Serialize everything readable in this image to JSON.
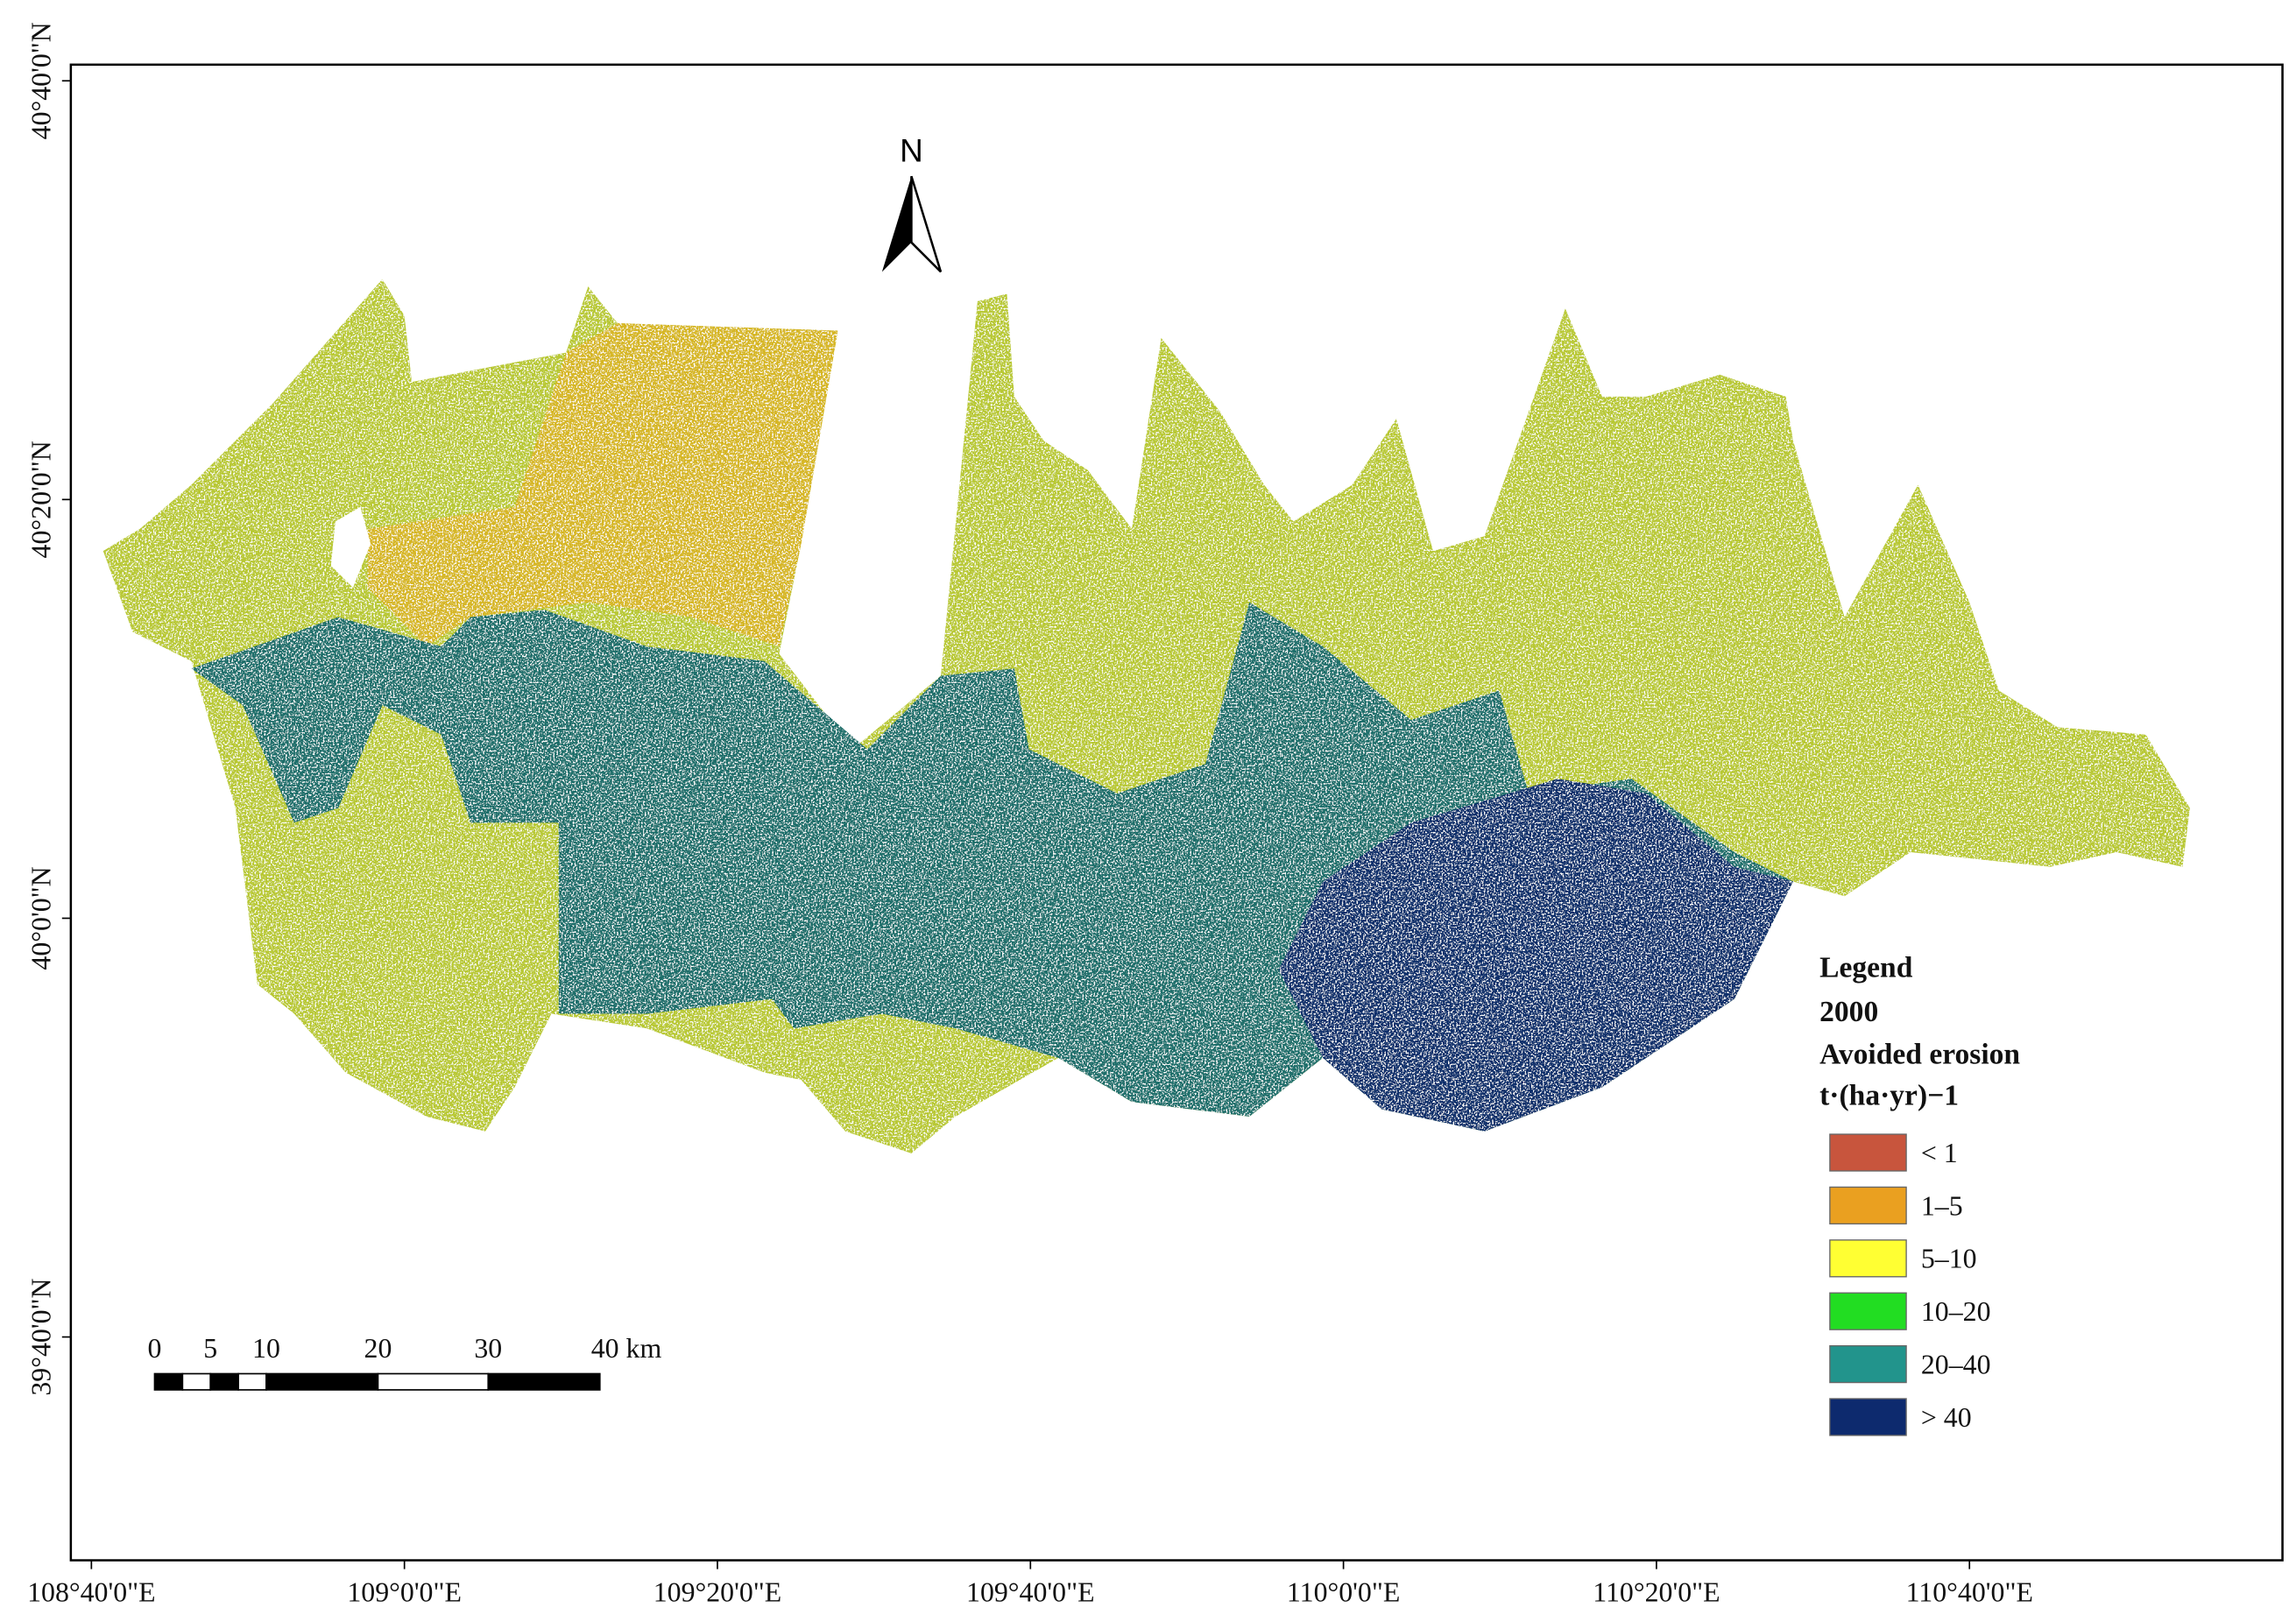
{
  "map": {
    "north_label": "N",
    "x_ticks": [
      "108°40'0\"E",
      "109°0'0\"E",
      "109°20'0\"E",
      "109°40'0\"E",
      "110°0'0\"E",
      "110°20'0\"E",
      "110°40'0\"E"
    ],
    "y_ticks": [
      "40°40'0\"N",
      "40°20'0\"N",
      "40°0'0\"N",
      "39°40'0\"N"
    ],
    "scale_bar": {
      "labels": [
        "0",
        "5",
        "10",
        "20",
        "30",
        "40 km"
      ]
    },
    "legend": {
      "title": "Legend",
      "year": "2000",
      "variable": "Avoided erosion",
      "unit": "t·(ha·yr)−1",
      "items": [
        {
          "label": "< 1",
          "color": "#c8553d"
        },
        {
          "label": "1–5",
          "color": "#eaa020"
        },
        {
          "label": "5–10",
          "color": "#ffff33"
        },
        {
          "label": "10–20",
          "color": "#22dd22"
        },
        {
          "label": "20–40",
          "color": "#22948c"
        },
        {
          "label": "> 40",
          "color": "#0d2a6e"
        }
      ]
    }
  }
}
